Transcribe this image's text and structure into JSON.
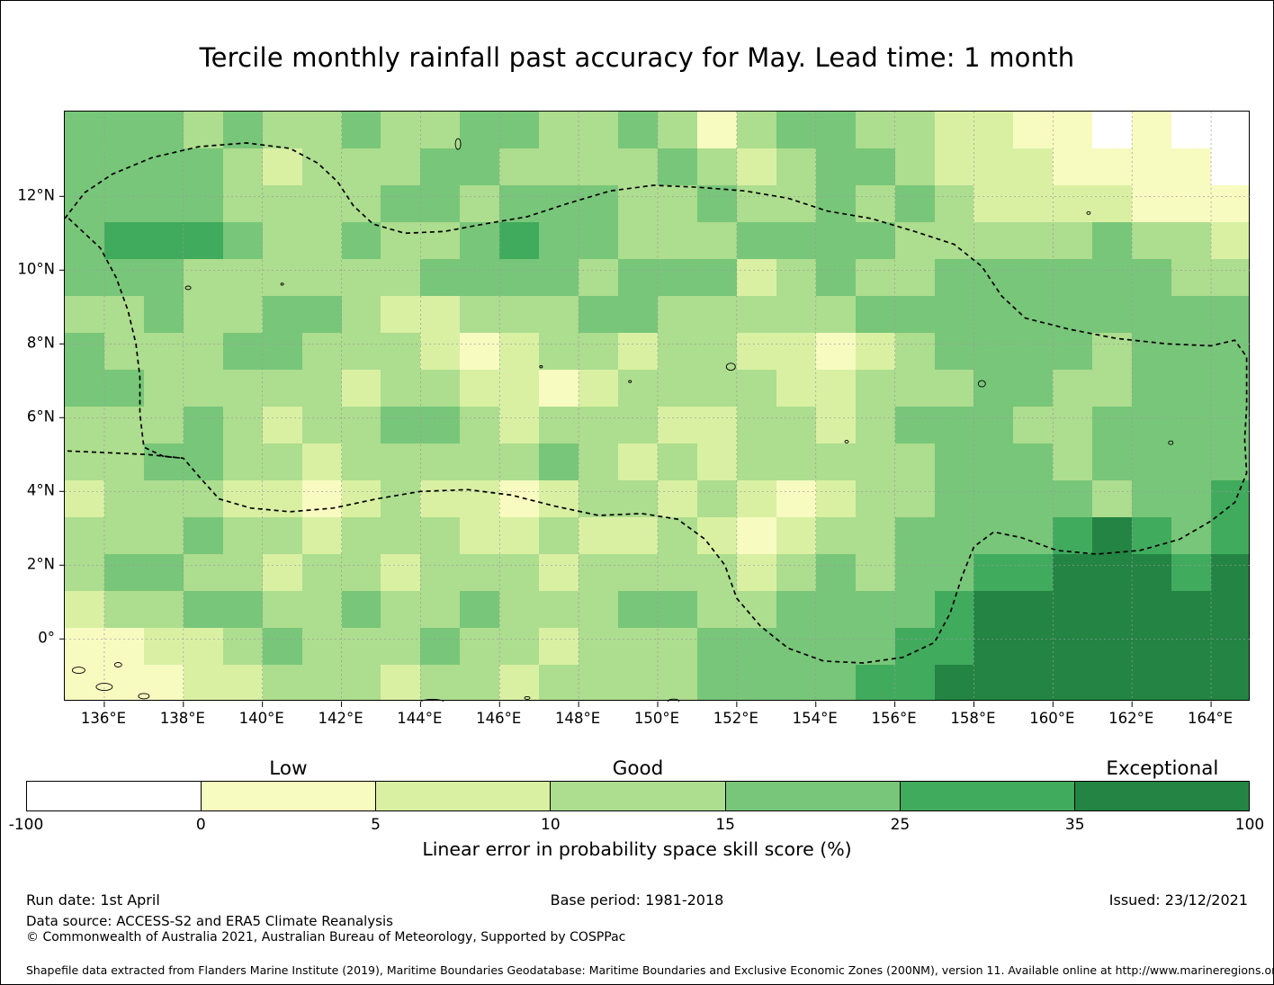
{
  "chart_data": {
    "type": "heatmap",
    "title": "Tercile monthly rainfall past accuracy for May. Lead time: 1 month",
    "x_range": [
      135,
      165
    ],
    "y_range": [
      -1.7,
      14.3
    ],
    "x_ticks": {
      "values": [
        136,
        138,
        140,
        142,
        144,
        146,
        148,
        150,
        152,
        154,
        156,
        158,
        160,
        162,
        164
      ],
      "labels": [
        "136°E",
        "138°E",
        "140°E",
        "142°E",
        "144°E",
        "146°E",
        "148°E",
        "150°E",
        "152°E",
        "154°E",
        "156°E",
        "158°E",
        "160°E",
        "162°E",
        "164°E"
      ]
    },
    "y_ticks": {
      "values": [
        0,
        2,
        4,
        6,
        8,
        10,
        12
      ],
      "labels": [
        "0°",
        "2°N",
        "4°N",
        "6°N",
        "8°N",
        "10°N",
        "12°N"
      ]
    },
    "legend_labels": [
      "Low",
      "Good",
      "Exceptional"
    ],
    "colorbar": {
      "ticks": [
        "-100",
        "0",
        "5",
        "10",
        "15",
        "25",
        "35",
        "100"
      ],
      "colors": [
        "#ffffff",
        "#f7fbc0",
        "#d9f0a3",
        "#addd8e",
        "#78c679",
        "#41ab5d",
        "#238443"
      ],
      "caption": "Linear error in probability space skill score (%)"
    },
    "bin_edges": [
      -100,
      0,
      5,
      10,
      15,
      25,
      35,
      100
    ],
    "grid_note": "Cell values are color-bin indices; bin i covers bin_edges[i] to bin_edges[i+1] (% skill score). Rows top (14.3N) to bottom (-1.7), cols 135E to 165E in 1-degree cells; values estimated from the map.",
    "grid": [
      [
        4,
        4,
        4,
        3,
        4,
        3,
        3,
        4,
        3,
        3,
        4,
        4,
        3,
        3,
        4,
        3,
        1,
        3,
        4,
        4,
        3,
        3,
        2,
        2,
        1,
        1,
        0,
        1,
        0,
        0
      ],
      [
        4,
        4,
        4,
        4,
        3,
        2,
        3,
        3,
        3,
        4,
        4,
        3,
        3,
        3,
        3,
        4,
        3,
        2,
        3,
        4,
        4,
        3,
        2,
        2,
        2,
        1,
        1,
        1,
        1,
        0
      ],
      [
        4,
        4,
        4,
        4,
        3,
        3,
        3,
        3,
        4,
        4,
        3,
        4,
        4,
        4,
        3,
        3,
        4,
        3,
        3,
        4,
        3,
        4,
        3,
        2,
        2,
        2,
        2,
        1,
        1,
        1
      ],
      [
        4,
        5,
        5,
        5,
        4,
        3,
        3,
        4,
        3,
        3,
        4,
        5,
        4,
        4,
        3,
        3,
        3,
        4,
        4,
        4,
        4,
        3,
        3,
        3,
        3,
        3,
        4,
        3,
        3,
        2
      ],
      [
        4,
        4,
        4,
        3,
        3,
        3,
        3,
        3,
        3,
        4,
        4,
        4,
        4,
        3,
        4,
        4,
        4,
        2,
        3,
        4,
        3,
        3,
        4,
        4,
        4,
        4,
        4,
        4,
        3,
        3
      ],
      [
        3,
        3,
        4,
        3,
        3,
        4,
        4,
        3,
        2,
        2,
        3,
        3,
        3,
        4,
        4,
        3,
        3,
        3,
        3,
        3,
        4,
        4,
        4,
        4,
        4,
        4,
        4,
        4,
        4,
        4
      ],
      [
        4,
        3,
        3,
        3,
        4,
        4,
        3,
        3,
        3,
        2,
        1,
        2,
        3,
        3,
        2,
        3,
        3,
        2,
        2,
        1,
        2,
        3,
        4,
        4,
        4,
        4,
        3,
        4,
        4,
        4
      ],
      [
        4,
        4,
        3,
        3,
        3,
        3,
        3,
        2,
        3,
        3,
        2,
        2,
        1,
        2,
        3,
        3,
        3,
        3,
        2,
        2,
        3,
        3,
        3,
        4,
        4,
        3,
        3,
        4,
        4,
        4
      ],
      [
        3,
        3,
        3,
        4,
        3,
        2,
        3,
        3,
        4,
        4,
        3,
        2,
        3,
        3,
        3,
        2,
        2,
        3,
        3,
        2,
        3,
        4,
        4,
        4,
        3,
        3,
        4,
        4,
        4,
        4
      ],
      [
        3,
        3,
        4,
        4,
        3,
        3,
        2,
        3,
        3,
        3,
        3,
        3,
        4,
        3,
        2,
        3,
        2,
        3,
        3,
        3,
        3,
        3,
        4,
        4,
        4,
        3,
        4,
        4,
        4,
        4
      ],
      [
        2,
        3,
        3,
        3,
        2,
        2,
        1,
        2,
        3,
        2,
        2,
        1,
        2,
        3,
        3,
        2,
        3,
        2,
        1,
        2,
        3,
        3,
        4,
        4,
        4,
        4,
        3,
        4,
        4,
        5
      ],
      [
        3,
        3,
        3,
        4,
        3,
        3,
        2,
        3,
        3,
        3,
        2,
        2,
        3,
        2,
        2,
        3,
        2,
        1,
        2,
        3,
        3,
        4,
        4,
        4,
        4,
        5,
        6,
        5,
        4,
        5
      ],
      [
        3,
        4,
        4,
        3,
        3,
        2,
        3,
        3,
        2,
        3,
        3,
        3,
        2,
        3,
        3,
        3,
        3,
        2,
        3,
        4,
        3,
        4,
        4,
        5,
        5,
        6,
        6,
        6,
        5,
        6
      ],
      [
        2,
        3,
        3,
        4,
        4,
        3,
        3,
        4,
        3,
        3,
        4,
        3,
        3,
        3,
        4,
        4,
        3,
        3,
        4,
        4,
        4,
        4,
        5,
        6,
        6,
        6,
        6,
        6,
        6,
        6
      ],
      [
        1,
        1,
        2,
        2,
        3,
        4,
        3,
        3,
        3,
        4,
        3,
        3,
        2,
        3,
        3,
        3,
        4,
        4,
        4,
        4,
        4,
        5,
        5,
        6,
        6,
        6,
        6,
        6,
        6,
        6
      ],
      [
        1,
        1,
        1,
        2,
        2,
        3,
        3,
        3,
        2,
        3,
        3,
        2,
        3,
        3,
        3,
        3,
        4,
        4,
        4,
        4,
        5,
        5,
        6,
        6,
        6,
        6,
        6,
        6,
        6,
        6
      ]
    ],
    "boundaries": [
      [
        [
          135.0,
          11.4
        ],
        [
          135.5,
          12.1
        ],
        [
          136.2,
          12.6
        ],
        [
          137.2,
          13.05
        ],
        [
          138.4,
          13.35
        ],
        [
          139.6,
          13.45
        ],
        [
          140.7,
          13.3
        ],
        [
          141.4,
          12.9
        ],
        [
          141.9,
          12.4
        ],
        [
          142.3,
          11.75
        ],
        [
          142.8,
          11.25
        ],
        [
          143.6,
          11.0
        ],
        [
          144.6,
          11.05
        ],
        [
          145.6,
          11.25
        ],
        [
          146.7,
          11.45
        ],
        [
          147.7,
          11.8
        ],
        [
          148.8,
          12.15
        ],
        [
          149.9,
          12.3
        ],
        [
          151.0,
          12.25
        ],
        [
          152.2,
          12.15
        ],
        [
          153.3,
          11.95
        ],
        [
          154.3,
          11.6
        ],
        [
          155.4,
          11.4
        ],
        [
          156.5,
          11.05
        ],
        [
          157.5,
          10.7
        ],
        [
          158.2,
          10.1
        ],
        [
          158.7,
          9.3
        ],
        [
          159.3,
          8.7
        ],
        [
          160.4,
          8.4
        ],
        [
          161.6,
          8.15
        ],
        [
          162.9,
          8.0
        ],
        [
          164.0,
          7.95
        ],
        [
          164.6,
          8.1
        ],
        [
          164.9,
          7.65
        ],
        [
          164.9,
          6.3
        ],
        [
          164.85,
          5.4
        ],
        [
          164.9,
          4.5
        ],
        [
          164.6,
          3.7
        ],
        [
          164.0,
          3.2
        ],
        [
          163.2,
          2.7
        ],
        [
          162.2,
          2.4
        ],
        [
          161.1,
          2.3
        ],
        [
          160.1,
          2.4
        ],
        [
          159.2,
          2.75
        ],
        [
          158.5,
          2.9
        ],
        [
          158.0,
          2.5
        ],
        [
          157.7,
          1.7
        ],
        [
          157.4,
          0.7
        ],
        [
          157.0,
          -0.1
        ],
        [
          156.2,
          -0.5
        ],
        [
          155.2,
          -0.65
        ],
        [
          154.2,
          -0.6
        ],
        [
          153.3,
          -0.25
        ],
        [
          152.6,
          0.35
        ],
        [
          152.0,
          1.1
        ],
        [
          151.7,
          2.0
        ],
        [
          151.2,
          2.7
        ],
        [
          150.5,
          3.25
        ],
        [
          149.6,
          3.4
        ],
        [
          148.5,
          3.35
        ],
        [
          147.4,
          3.6
        ],
        [
          146.3,
          3.9
        ],
        [
          145.2,
          4.05
        ],
        [
          144.0,
          4.0
        ],
        [
          142.9,
          3.8
        ],
        [
          141.8,
          3.55
        ],
        [
          140.7,
          3.45
        ],
        [
          139.7,
          3.55
        ],
        [
          138.9,
          3.8
        ],
        [
          138.4,
          4.4
        ],
        [
          138.0,
          4.9
        ],
        [
          137.1,
          5.0
        ],
        [
          136.1,
          5.05
        ],
        [
          135.0,
          5.1
        ]
      ],
      [
        [
          135.1,
          11.4
        ],
        [
          135.9,
          10.6
        ],
        [
          136.3,
          9.8
        ],
        [
          136.6,
          8.9
        ],
        [
          136.8,
          8.0
        ],
        [
          136.9,
          7.1
        ],
        [
          136.9,
          6.1
        ],
        [
          137.0,
          5.2
        ],
        [
          137.5,
          4.95
        ],
        [
          138.0,
          4.9
        ]
      ]
    ],
    "islands": [
      [
        144.95,
        13.42,
        3,
        6
      ],
      [
        138.12,
        9.52,
        3,
        2
      ],
      [
        151.85,
        7.38,
        5,
        4
      ],
      [
        158.2,
        6.92,
        4,
        3.5
      ],
      [
        162.98,
        5.32,
        2.5,
        2
      ],
      [
        154.78,
        5.35,
        2,
        1.5
      ],
      [
        160.9,
        11.55,
        2,
        1.5
      ],
      [
        147.05,
        7.38,
        1.5,
        1.2
      ],
      [
        149.3,
        6.98,
        1.5,
        1.2
      ],
      [
        140.5,
        9.62,
        1.5,
        1.2
      ],
      [
        135.35,
        -0.85,
        7,
        3.5
      ],
      [
        136.0,
        -1.3,
        9,
        4
      ],
      [
        137.0,
        -1.55,
        6,
        3
      ],
      [
        136.35,
        -0.7,
        4,
        2.5
      ],
      [
        144.3,
        -1.7,
        12,
        2.5
      ],
      [
        150.4,
        -1.68,
        6,
        2
      ],
      [
        146.7,
        -1.6,
        3,
        1.5
      ]
    ]
  },
  "footer": {
    "run_date": "Run date: 1st April",
    "base_period": "Base period: 1981-2018",
    "issued": "Issued: 23/12/2021",
    "data_source": "Data source: ACCESS-S2 and ERA5 Climate Reanalysis",
    "copyright": "© Commonwealth of Australia 2021, Australian Bureau of Meteorology, Supported by COSPPac",
    "shapefile_note": "Shapefile data extracted from Flanders Marine Institute (2019), Maritime Boundaries Geodatabase: Maritime Boundaries and Exclusive Economic Zones (200NM), version 11. Available online at http://www.marineregions.org/."
  }
}
